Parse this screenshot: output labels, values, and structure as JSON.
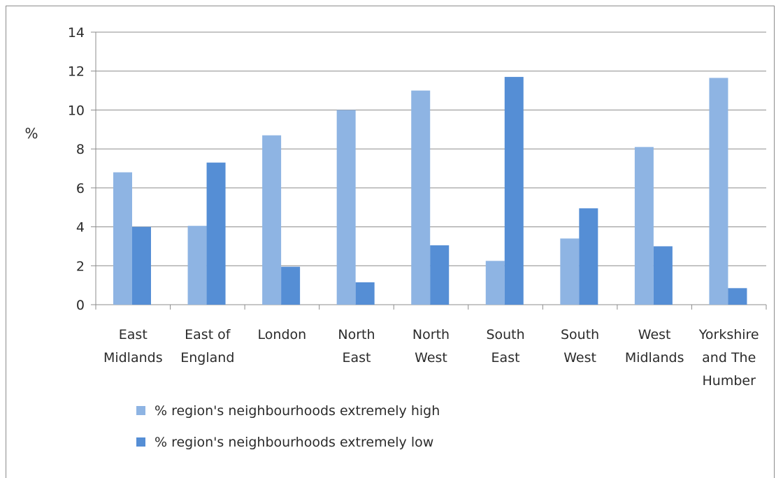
{
  "chart_data": {
    "type": "bar",
    "ylabel": "%",
    "ylim": [
      0,
      14
    ],
    "y_ticks": [
      0,
      2,
      4,
      6,
      8,
      10,
      12,
      14
    ],
    "grid": true,
    "legend_position": "bottom-left",
    "categories": [
      [
        "East",
        "Midlands"
      ],
      [
        "East of",
        "England"
      ],
      [
        "London"
      ],
      [
        "North",
        "East"
      ],
      [
        "North",
        "West"
      ],
      [
        "South",
        "East"
      ],
      [
        "South",
        "West"
      ],
      [
        "West",
        "Midlands"
      ],
      [
        "Yorkshire",
        "and The",
        "Humber"
      ]
    ],
    "series": [
      {
        "name": "% region's neighbourhoods extremely high",
        "color": "#8eb4e3",
        "values": [
          6.8,
          4.05,
          8.7,
          10.0,
          11.0,
          2.25,
          3.4,
          8.1,
          11.65
        ]
      },
      {
        "name": "% region's neighbourhoods extremely low",
        "color": "#558ed5",
        "values": [
          4.0,
          7.3,
          1.95,
          1.15,
          3.05,
          11.7,
          4.95,
          3.0,
          0.85
        ]
      }
    ]
  }
}
